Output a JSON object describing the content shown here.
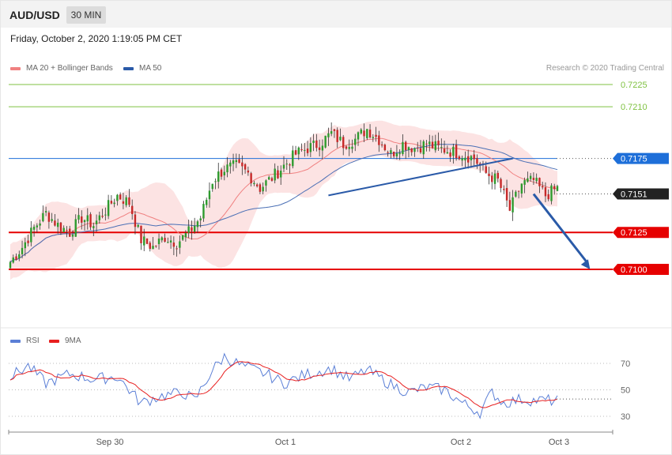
{
  "header": {
    "symbol": "AUD/USD",
    "timeframe": "30 MIN",
    "datetime": "Friday, October 2, 2020 1:19:05 PM CET",
    "credit": "Research © 2020 Trading Central"
  },
  "legend": {
    "ma20": {
      "label": "MA 20 + Bollinger Bands",
      "color": "#f08080"
    },
    "ma50": {
      "label": "MA 50",
      "color": "#2a5aa8"
    },
    "rsi": {
      "label": "RSI",
      "color": "#5b7fd6"
    },
    "ma9": {
      "label": "9MA",
      "color": "#e82020"
    }
  },
  "chart_data": [
    {
      "type": "candlestick",
      "title": "AUD/USD 30 MIN",
      "ylim": [
        0.7063,
        0.7262
      ],
      "x_ticks": [
        "Sep 30",
        "Oct 1",
        "Oct 2",
        "Oct 3"
      ],
      "levels": [
        {
          "value": 0.7225,
          "label": "0.7225",
          "style": "target",
          "color": "#7fc241"
        },
        {
          "value": 0.721,
          "label": "0.7210",
          "style": "target",
          "color": "#7fc241"
        },
        {
          "value": 0.7175,
          "label": "0.7175",
          "style": "pivot",
          "color": "#1e6fd9"
        },
        {
          "value": 0.7151,
          "label": "0.7151",
          "style": "last",
          "color": "#222222"
        },
        {
          "value": 0.7125,
          "label": "0.7125",
          "style": "support",
          "color": "#e60000"
        },
        {
          "value": 0.71,
          "label": "0.7100",
          "style": "support",
          "color": "#e60000"
        }
      ],
      "close_anchors": [
        [
          0,
          0.7105
        ],
        [
          4,
          0.7115
        ],
        [
          8,
          0.7128
        ],
        [
          12,
          0.7138
        ],
        [
          16,
          0.713
        ],
        [
          20,
          0.7125
        ],
        [
          24,
          0.7135
        ],
        [
          28,
          0.713
        ],
        [
          32,
          0.714
        ],
        [
          36,
          0.715
        ],
        [
          40,
          0.7145
        ],
        [
          44,
          0.712
        ],
        [
          48,
          0.7115
        ],
        [
          52,
          0.7122
        ],
        [
          56,
          0.7118
        ],
        [
          60,
          0.7125
        ],
        [
          64,
          0.7135
        ],
        [
          68,
          0.716
        ],
        [
          72,
          0.7168
        ],
        [
          76,
          0.717
        ],
        [
          80,
          0.7165
        ],
        [
          84,
          0.7155
        ],
        [
          88,
          0.7162
        ],
        [
          92,
          0.717
        ],
        [
          96,
          0.7178
        ],
        [
          100,
          0.7182
        ],
        [
          104,
          0.7185
        ],
        [
          108,
          0.7192
        ],
        [
          112,
          0.7185
        ],
        [
          116,
          0.7188
        ],
        [
          120,
          0.7195
        ],
        [
          124,
          0.7188
        ],
        [
          128,
          0.7178
        ],
        [
          132,
          0.7185
        ],
        [
          136,
          0.7182
        ],
        [
          140,
          0.7185
        ],
        [
          144,
          0.7182
        ],
        [
          148,
          0.718
        ],
        [
          152,
          0.7178
        ],
        [
          156,
          0.7175
        ],
        [
          160,
          0.7165
        ],
        [
          164,
          0.716
        ],
        [
          168,
          0.714
        ],
        [
          172,
          0.7158
        ],
        [
          176,
          0.716
        ],
        [
          180,
          0.715
        ],
        [
          184,
          0.7155
        ]
      ],
      "trendline": {
        "from": [
          107,
          0.715
        ],
        "to": [
          169,
          0.7175
        ],
        "color": "#2a5aa8"
      },
      "forecast_arrow": {
        "from": [
          176,
          0.7151
        ],
        "to": [
          195,
          0.71
        ],
        "color": "#2a5aa8"
      }
    },
    {
      "type": "line",
      "title": "RSI",
      "ylim": [
        18,
        82
      ],
      "y_ticks": [
        "70",
        "50",
        "30"
      ],
      "y_tick_values": [
        70,
        50,
        30
      ],
      "rsi_anchors": [
        [
          0,
          60
        ],
        [
          6,
          68
        ],
        [
          12,
          55
        ],
        [
          20,
          62
        ],
        [
          28,
          58
        ],
        [
          36,
          60
        ],
        [
          44,
          40
        ],
        [
          50,
          45
        ],
        [
          58,
          48
        ],
        [
          62,
          42
        ],
        [
          68,
          65
        ],
        [
          72,
          75
        ],
        [
          78,
          68
        ],
        [
          86,
          62
        ],
        [
          92,
          55
        ],
        [
          100,
          62
        ],
        [
          108,
          66
        ],
        [
          114,
          58
        ],
        [
          120,
          65
        ],
        [
          128,
          54
        ],
        [
          134,
          48
        ],
        [
          140,
          52
        ],
        [
          146,
          50
        ],
        [
          152,
          40
        ],
        [
          158,
          33
        ],
        [
          162,
          48
        ],
        [
          166,
          40
        ],
        [
          172,
          43
        ],
        [
          176,
          42
        ]
      ]
    }
  ]
}
